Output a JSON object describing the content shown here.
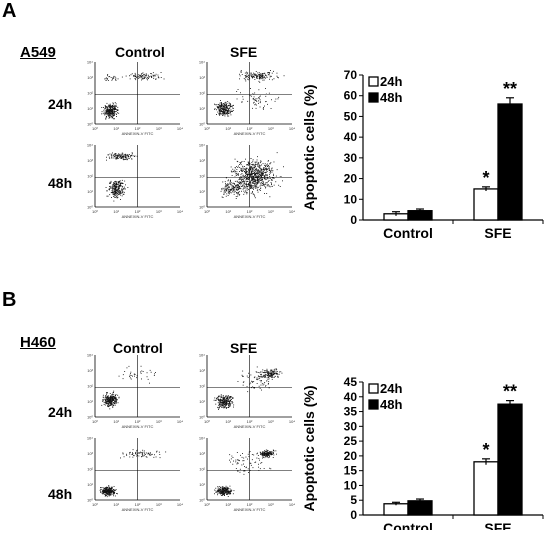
{
  "panels": [
    {
      "letter": "A",
      "cell_line": "A549",
      "flow_columns": [
        "Control",
        "SFE"
      ],
      "flow_rows": [
        "24h",
        "48h"
      ],
      "flow_axis_label": "ANNEXIN-V FITC",
      "flow_tick_labels": [
        "10⁰",
        "10¹",
        "10²",
        "10³",
        "10⁴"
      ]
    },
    {
      "letter": "B",
      "cell_line": "H460",
      "flow_columns": [
        "Control",
        "SFE"
      ],
      "flow_rows": [
        "24h",
        "48h"
      ],
      "flow_axis_label": "ANNEXIN-V FITC",
      "flow_tick_labels": [
        "10⁰",
        "10¹",
        "10²",
        "10³",
        "10⁴"
      ]
    }
  ],
  "chart_data": [
    {
      "type": "bar",
      "panel": "A",
      "categories": [
        "Control",
        "SFE"
      ],
      "series": [
        {
          "name": "24h",
          "values": [
            3,
            15
          ],
          "errors": [
            1,
            1
          ],
          "fill": "#ffffff"
        },
        {
          "name": "48h",
          "values": [
            4.5,
            56
          ],
          "errors": [
            0.8,
            3
          ],
          "fill": "#000000"
        }
      ],
      "annotations": [
        "",
        "",
        "*",
        "**"
      ],
      "ylabel": "Apoptotic cells (%)",
      "ylim": [
        0,
        70
      ],
      "yticks": [
        0,
        10,
        20,
        30,
        40,
        50,
        60,
        70
      ],
      "legend_position": "top-left",
      "grid": false
    },
    {
      "type": "bar",
      "panel": "B",
      "categories": [
        "Control",
        "SFE"
      ],
      "series": [
        {
          "name": "24h",
          "values": [
            3.8,
            18
          ],
          "errors": [
            0.5,
            1
          ],
          "fill": "#ffffff"
        },
        {
          "name": "48h",
          "values": [
            4.8,
            37.5
          ],
          "errors": [
            0.6,
            1.2
          ],
          "fill": "#000000"
        }
      ],
      "annotations": [
        "",
        "",
        "*",
        "**"
      ],
      "ylabel": "Apoptotic cells (%)",
      "ylim": [
        0,
        45
      ],
      "yticks": [
        0,
        5,
        10,
        15,
        20,
        25,
        30,
        35,
        40,
        45
      ],
      "legend_position": "top-left",
      "grid": false
    }
  ]
}
